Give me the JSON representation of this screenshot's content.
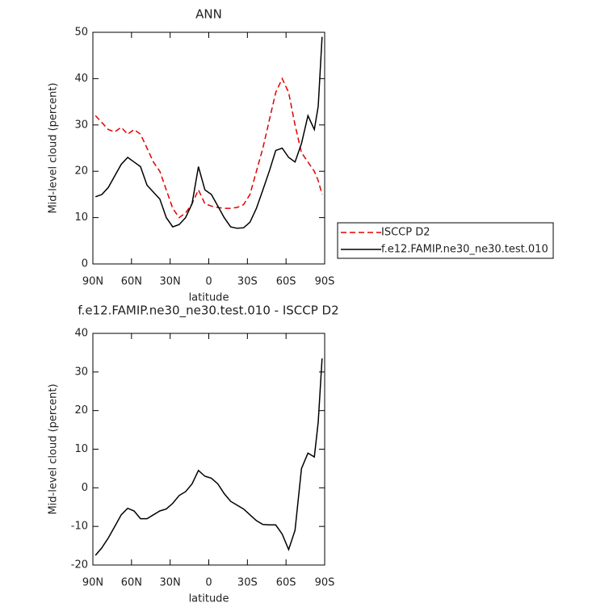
{
  "chart_data": [
    {
      "type": "line",
      "title": "ANN",
      "ylabel": "Mid-level cloud (percent)",
      "xlabel": "latitude",
      "x": [
        88,
        83,
        78,
        73,
        68,
        63,
        58,
        53,
        48,
        43,
        38,
        33,
        28,
        23,
        18,
        13,
        8,
        3,
        -2,
        -7,
        -12,
        -17,
        -22,
        -27,
        -32,
        -37,
        -42,
        -47,
        -52,
        -57,
        -62,
        -67,
        -72,
        -77,
        -82,
        -85,
        -88
      ],
      "xlim": [
        90,
        -90
      ],
      "xticks": [
        {
          "value": 90,
          "label": "90N"
        },
        {
          "value": 60,
          "label": "60N"
        },
        {
          "value": 30,
          "label": "30N"
        },
        0,
        {
          "value": -30,
          "label": "30S"
        },
        {
          "value": -60,
          "label": "60S"
        },
        {
          "value": -90,
          "label": "90S"
        }
      ],
      "ylim": [
        0,
        50
      ],
      "yticks": [
        0,
        10,
        20,
        30,
        40,
        50
      ],
      "series": [
        {
          "name": "ISCCP D2",
          "color": "#e00000",
          "dash": true,
          "values": [
            32,
            30.5,
            29,
            28.5,
            29.5,
            28,
            29,
            28,
            25,
            22,
            20,
            16,
            12,
            10,
            11,
            13,
            16,
            13,
            12.5,
            12.2,
            12,
            12,
            12.2,
            12.8,
            15,
            20,
            25,
            31,
            37,
            40,
            37,
            30,
            24,
            22,
            20,
            18,
            15
          ]
        },
        {
          "name": "f.e12.FAMIP.ne30_ne30.test.010",
          "color": "#000000",
          "dash": false,
          "values": [
            14.5,
            15,
            16.5,
            19,
            21.5,
            23,
            22,
            21,
            17,
            15.5,
            14,
            10,
            8,
            8.5,
            10,
            13,
            21,
            16,
            15,
            12.5,
            10,
            8,
            7.7,
            7.8,
            9,
            12,
            16,
            20,
            24.5,
            25,
            23,
            22,
            26,
            32,
            29,
            34,
            49
          ]
        }
      ]
    },
    {
      "type": "line",
      "title": "f.e12.FAMIP.ne30_ne30.test.010 - ISCCP D2",
      "ylabel": "Mid-level cloud (percent)",
      "xlabel": "latitude",
      "x": [
        88,
        83,
        78,
        73,
        68,
        63,
        58,
        53,
        48,
        43,
        38,
        33,
        28,
        23,
        18,
        13,
        8,
        3,
        -2,
        -7,
        -12,
        -17,
        -22,
        -27,
        -32,
        -37,
        -42,
        -47,
        -52,
        -57,
        -62,
        -67,
        -72,
        -77,
        -82,
        -85,
        -88
      ],
      "xlim": [
        90,
        -90
      ],
      "xticks": [
        {
          "value": 90,
          "label": "90N"
        },
        {
          "value": 60,
          "label": "60N"
        },
        {
          "value": 30,
          "label": "30N"
        },
        0,
        {
          "value": -30,
          "label": "30S"
        },
        {
          "value": -60,
          "label": "60S"
        },
        {
          "value": -90,
          "label": "90S"
        }
      ],
      "ylim": [
        -20,
        40
      ],
      "yticks": [
        -20,
        -10,
        0,
        10,
        20,
        30,
        40
      ],
      "series": [
        {
          "color": "#000000",
          "values": [
            -17.5,
            -15.5,
            -13,
            -10,
            -7,
            -5.3,
            -6,
            -8,
            -8,
            -7,
            -6,
            -5.5,
            -4,
            -2,
            -1,
            1,
            4.5,
            3,
            2.5,
            1,
            -1.5,
            -3.5,
            -4.5,
            -5.5,
            -7,
            -8.5,
            -9.5,
            -9.6,
            -9.6,
            -12,
            -16,
            -11,
            5,
            9,
            8,
            17,
            33.5
          ]
        }
      ]
    }
  ]
}
